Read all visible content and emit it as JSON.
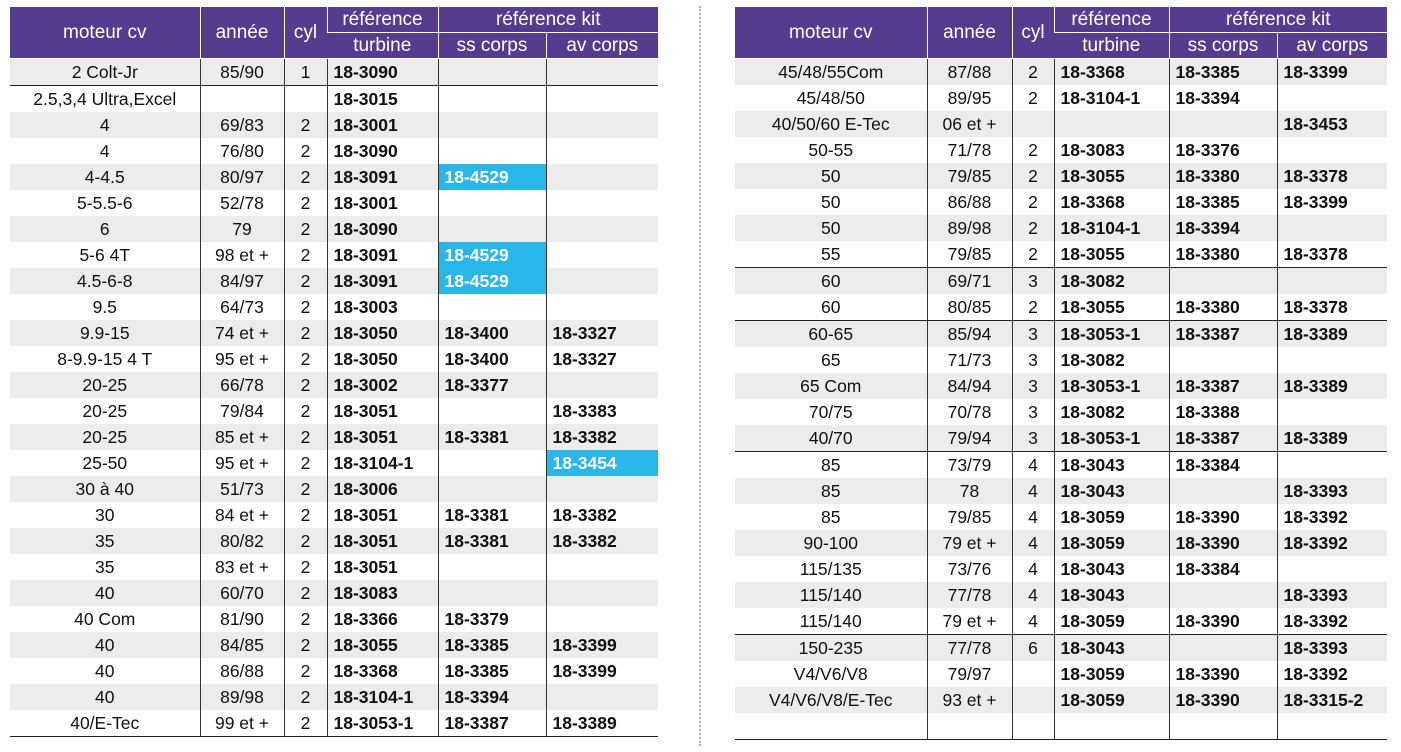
{
  "colors": {
    "header_bg": "#553c8f",
    "highlight": "#29b6e8",
    "row_alt": "#ececec"
  },
  "header": {
    "moteur": "moteur cv",
    "annee": "année",
    "cyl": "cyl",
    "ref": "référence",
    "ref_kit": "référence kit",
    "turbine": "turbine",
    "ss_corps": "ss corps",
    "av_corps": "av corps"
  },
  "left": {
    "rows": [
      [
        "2 Colt-Jr",
        "85/90",
        "1",
        "18-3090",
        "",
        ""
      ],
      [
        "2.5,3,4 Ultra,Excel",
        "",
        "",
        "18-3015",
        "",
        ""
      ],
      [
        "4",
        "69/83",
        "2",
        "18-3001",
        "",
        ""
      ],
      [
        "4",
        "76/80",
        "2",
        "18-3090",
        "",
        ""
      ],
      [
        "4-4.5",
        "80/97",
        "2",
        "18-3091",
        "18-4529",
        ""
      ],
      [
        "5-5.5-6",
        "52/78",
        "2",
        "18-3001",
        "",
        ""
      ],
      [
        "6",
        "79",
        "2",
        "18-3090",
        "",
        ""
      ],
      [
        "5-6 4T",
        "98 et +",
        "2",
        "18-3091",
        "18-4529",
        ""
      ],
      [
        "4.5-6-8",
        "84/97",
        "2",
        "18-3091",
        "18-4529",
        ""
      ],
      [
        "9.5",
        "64/73",
        "2",
        "18-3003",
        "",
        ""
      ],
      [
        "9.9-15",
        "74 et +",
        "2",
        "18-3050",
        "18-3400",
        "18-3327"
      ],
      [
        "8-9.9-15 4 T",
        "95 et +",
        "2",
        "18-3050",
        "18-3400",
        "18-3327"
      ],
      [
        "20-25",
        "66/78",
        "2",
        "18-3002",
        "18-3377",
        ""
      ],
      [
        "20-25",
        "79/84",
        "2",
        "18-3051",
        "",
        "18-3383"
      ],
      [
        "20-25",
        "85 et +",
        "2",
        "18-3051",
        "18-3381",
        "18-3382"
      ],
      [
        "25-50",
        "95 et +",
        "2",
        "18-3104-1",
        "",
        "18-3454"
      ],
      [
        "30 à 40",
        "51/73",
        "2",
        "18-3006",
        "",
        ""
      ],
      [
        "30",
        "84 et +",
        "2",
        "18-3051",
        "18-3381",
        "18-3382"
      ],
      [
        "35",
        "80/82",
        "2",
        "18-3051",
        "18-3381",
        "18-3382"
      ],
      [
        "35",
        "83 et +",
        "2",
        "18-3051",
        "",
        ""
      ],
      [
        "40",
        "60/70",
        "2",
        "18-3083",
        "",
        ""
      ],
      [
        "40 Com",
        "81/90",
        "2",
        "18-3366",
        "18-3379",
        ""
      ],
      [
        "40",
        "84/85",
        "2",
        "18-3055",
        "18-3385",
        "18-3399"
      ],
      [
        "40",
        "86/88",
        "2",
        "18-3368",
        "18-3385",
        "18-3399"
      ],
      [
        "40",
        "89/98",
        "2",
        "18-3104-1",
        "18-3394",
        ""
      ],
      [
        "40/E-Tec",
        "99 et +",
        "2",
        "18-3053-1",
        "18-3387",
        "18-3389"
      ]
    ],
    "highlighted": [
      [
        4,
        4
      ],
      [
        7,
        4
      ],
      [
        8,
        4
      ],
      [
        15,
        5
      ]
    ],
    "group_breaks": [
      0
    ]
  },
  "right": {
    "rows": [
      [
        "45/48/55Com",
        "87/88",
        "2",
        "18-3368",
        "18-3385",
        "18-3399"
      ],
      [
        "45/48/50",
        "89/95",
        "2",
        "18-3104-1",
        "18-3394",
        ""
      ],
      [
        "40/50/60 E-Tec",
        "06 et +",
        "",
        "",
        "",
        "18-3453"
      ],
      [
        "50-55",
        "71/78",
        "2",
        "18-3083",
        "18-3376",
        ""
      ],
      [
        "50",
        "79/85",
        "2",
        "18-3055",
        "18-3380",
        "18-3378"
      ],
      [
        "50",
        "86/88",
        "2",
        "18-3368",
        "18-3385",
        "18-3399"
      ],
      [
        "50",
        "89/98",
        "2",
        "18-3104-1",
        "18-3394",
        ""
      ],
      [
        "55",
        "79/85",
        "2",
        "18-3055",
        "18-3380",
        "18-3378"
      ],
      [
        "60",
        "69/71",
        "3",
        "18-3082",
        "",
        ""
      ],
      [
        "60",
        "80/85",
        "2",
        "18-3055",
        "18-3380",
        "18-3378"
      ],
      [
        "60-65",
        "85/94",
        "3",
        "18-3053-1",
        "18-3387",
        "18-3389"
      ],
      [
        "65",
        "71/73",
        "3",
        "18-3082",
        "",
        ""
      ],
      [
        "65 Com",
        "84/94",
        "3",
        "18-3053-1",
        "18-3387",
        "18-3389"
      ],
      [
        "70/75",
        "70/78",
        "3",
        "18-3082",
        "18-3388",
        ""
      ],
      [
        "40/70",
        "79/94",
        "3",
        "18-3053-1",
        "18-3387",
        "18-3389"
      ],
      [
        "85",
        "73/79",
        "4",
        "18-3043",
        "18-3384",
        ""
      ],
      [
        "85",
        "78",
        "4",
        "18-3043",
        "",
        "18-3393"
      ],
      [
        "85",
        "79/85",
        "4",
        "18-3059",
        "18-3390",
        "18-3392"
      ],
      [
        "90-100",
        "79 et +",
        "4",
        "18-3059",
        "18-3390",
        "18-3392"
      ],
      [
        "115/135",
        "73/76",
        "4",
        "18-3043",
        "18-3384",
        ""
      ],
      [
        "115/140",
        "77/78",
        "4",
        "18-3043",
        "",
        "18-3393"
      ],
      [
        "115/140",
        "79 et +",
        "4",
        "18-3059",
        "18-3390",
        "18-3392"
      ],
      [
        "150-235",
        "77/78",
        "6",
        "18-3043",
        "",
        "18-3393"
      ],
      [
        "V4/V6/V8",
        "79/97",
        "",
        "18-3059",
        "18-3390",
        "18-3392"
      ],
      [
        "V4/V6/V8/E-Tec",
        "93 et +",
        "",
        "18-3059",
        "18-3390",
        "18-3315-2"
      ],
      [
        "",
        "",
        "",
        "",
        "",
        ""
      ]
    ],
    "highlighted": [],
    "group_breaks": [
      7,
      9,
      14,
      21
    ]
  }
}
